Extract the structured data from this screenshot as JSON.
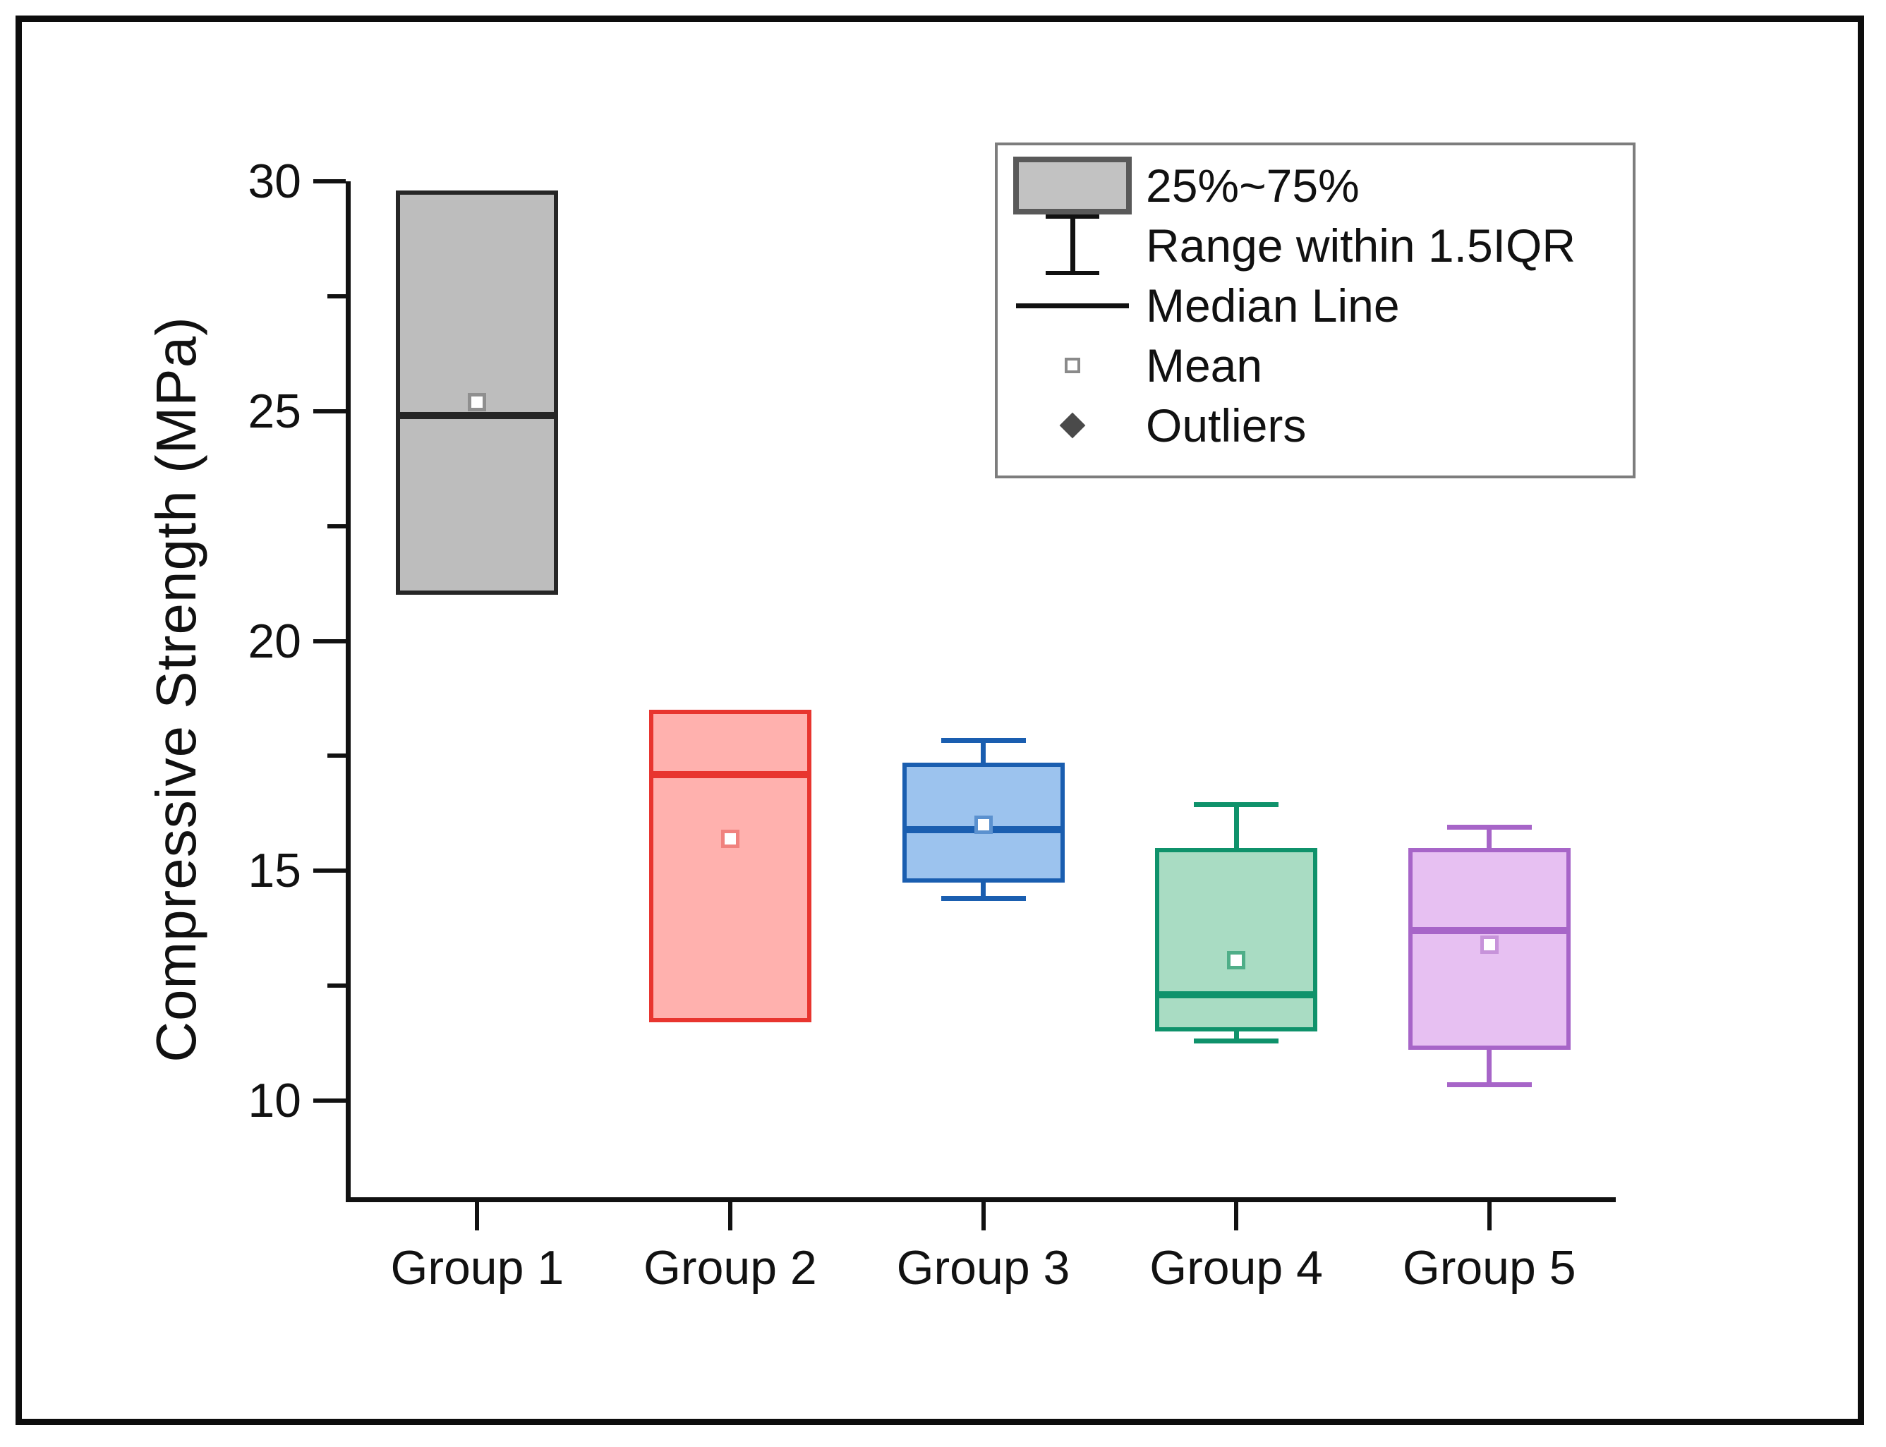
{
  "y_axis": {
    "title": "Compressive Strength (MPa)",
    "tick_labels": [
      "30",
      "25",
      "20",
      "15",
      "10"
    ]
  },
  "x_axis": {
    "tick_labels": [
      "Group 1",
      "Group 2",
      "Group 3",
      "Group 4",
      "Group 5"
    ]
  },
  "legend": {
    "items": [
      {
        "glyph": "iqr-box",
        "label": "25%~75%"
      },
      {
        "glyph": "error-bar",
        "label": "Range within 1.5IQR"
      },
      {
        "glyph": "median-line",
        "label": "Median Line"
      },
      {
        "glyph": "mean-square",
        "label": "Mean"
      },
      {
        "glyph": "outlier-diamond",
        "label": "Outliers"
      }
    ]
  },
  "chart_data": {
    "type": "box",
    "title": "",
    "xlabel": "",
    "ylabel": "Compressive Strength (MPa)",
    "ylim": [
      7.9,
      30
    ],
    "y_major_ticks": [
      30,
      25,
      20,
      15,
      10
    ],
    "y_minor_ticks": [
      27.5,
      22.5,
      17.5,
      12.5
    ],
    "grid": false,
    "legend_position": "top-right",
    "categories": [
      "Group 1",
      "Group 2",
      "Group 3",
      "Group 4",
      "Group 5"
    ],
    "series": [
      {
        "name": "Group 1",
        "q1": 21.0,
        "median": 24.9,
        "q3": 29.8,
        "mean": 25.2,
        "whisker_low": 21.0,
        "whisker_high": 29.8,
        "whiskers_visible": false,
        "outliers": [],
        "fill": "#bdbdbd",
        "stroke": "#262626",
        "mean_stroke": "#8f8f8f"
      },
      {
        "name": "Group 2",
        "q1": 11.7,
        "median": 17.1,
        "q3": 18.5,
        "mean": 15.7,
        "whisker_low": 11.7,
        "whisker_high": 18.5,
        "whiskers_visible": false,
        "outliers": [],
        "fill": "#ffb1ae",
        "stroke": "#e8352f",
        "mean_stroke": "#f0827e"
      },
      {
        "name": "Group 3",
        "q1": 14.75,
        "median": 15.9,
        "q3": 17.35,
        "mean": 16.0,
        "whisker_low": 14.4,
        "whisker_high": 17.85,
        "whiskers_visible": true,
        "outliers": [],
        "fill": "#9cc3ee",
        "stroke": "#1a5eb0",
        "mean_stroke": "#5b91cf"
      },
      {
        "name": "Group 4",
        "q1": 11.5,
        "median": 12.3,
        "q3": 15.5,
        "mean": 13.05,
        "whisker_low": 11.3,
        "whisker_high": 16.45,
        "whiskers_visible": true,
        "outliers": [],
        "fill": "#a9dcc3",
        "stroke": "#0f926b",
        "mean_stroke": "#4fae88"
      },
      {
        "name": "Group 5",
        "q1": 11.1,
        "median": 13.7,
        "q3": 15.5,
        "mean": 13.4,
        "whisker_low": 10.35,
        "whisker_high": 15.95,
        "whiskers_visible": true,
        "outliers": [],
        "fill": "#e7c0f2",
        "stroke": "#a765c8",
        "mean_stroke": "#c793da"
      }
    ]
  }
}
